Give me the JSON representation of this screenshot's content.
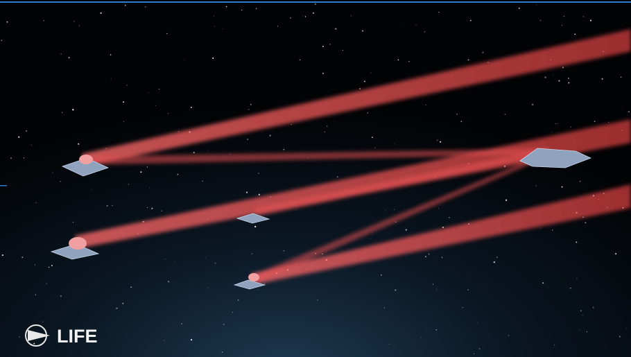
{
  "logo": {
    "text": "LIFE"
  }
}
